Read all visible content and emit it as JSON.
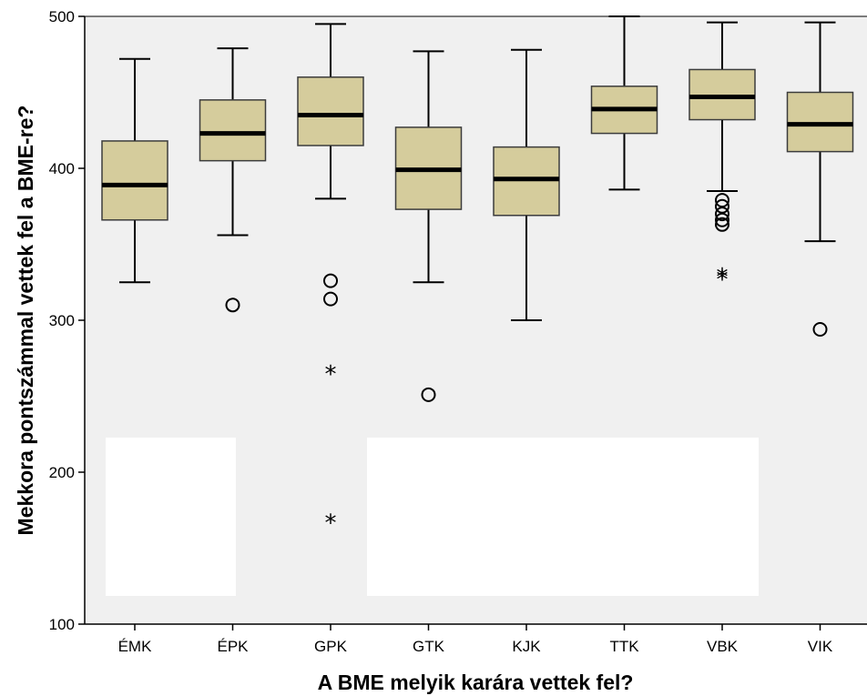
{
  "chart_data": {
    "type": "boxplot",
    "xlabel": "A BME melyik karára vettek fel?",
    "ylabel": "Mekkora pontszámmal vettek fel a BME-re?",
    "ylim": [
      100,
      500
    ],
    "yticks": [
      100,
      200,
      300,
      400,
      500
    ],
    "colors": {
      "plot_bg": "#f0f0f0",
      "box_fill": "#d5cc9c",
      "box_stroke": "#3c3c3c",
      "median": "#000000",
      "overlay": "#ffffff"
    },
    "categories": [
      "ÉMK",
      "ÉPK",
      "GPK",
      "GTK",
      "KJK",
      "TTK",
      "VBK",
      "VIK"
    ],
    "boxes": [
      {
        "category": "ÉMK",
        "whisker_low": 325,
        "q1": 366,
        "median": 389,
        "q3": 418,
        "whisker_high": 472,
        "outliers": [],
        "extremes": []
      },
      {
        "category": "ÉPK",
        "whisker_low": 356,
        "q1": 405,
        "median": 423,
        "q3": 445,
        "whisker_high": 479,
        "outliers": [
          310
        ],
        "extremes": []
      },
      {
        "category": "GPK",
        "whisker_low": 380,
        "q1": 415,
        "median": 435,
        "q3": 460,
        "whisker_high": 495,
        "outliers": [
          326,
          314
        ],
        "extremes": [
          266,
          168
        ]
      },
      {
        "category": "GTK",
        "whisker_low": 325,
        "q1": 373,
        "median": 399,
        "q3": 427,
        "whisker_high": 477,
        "outliers": [
          251
        ],
        "extremes": []
      },
      {
        "category": "KJK",
        "whisker_low": 300,
        "q1": 369,
        "median": 393,
        "q3": 414,
        "whisker_high": 478,
        "outliers": [],
        "extremes": []
      },
      {
        "category": "TTK",
        "whisker_low": 386,
        "q1": 423,
        "median": 439,
        "q3": 454,
        "whisker_high": 500,
        "outliers": [],
        "extremes": []
      },
      {
        "category": "VBK",
        "whisker_low": 385,
        "q1": 432,
        "median": 447,
        "q3": 465,
        "whisker_high": 496,
        "outliers": [
          379,
          375,
          370,
          366,
          363
        ],
        "extremes": [
          330,
          328
        ]
      },
      {
        "category": "VIK",
        "whisker_low": 352,
        "q1": 411,
        "median": 429,
        "q3": 450,
        "whisker_high": 496,
        "outliers": [
          294
        ],
        "extremes": []
      }
    ]
  }
}
